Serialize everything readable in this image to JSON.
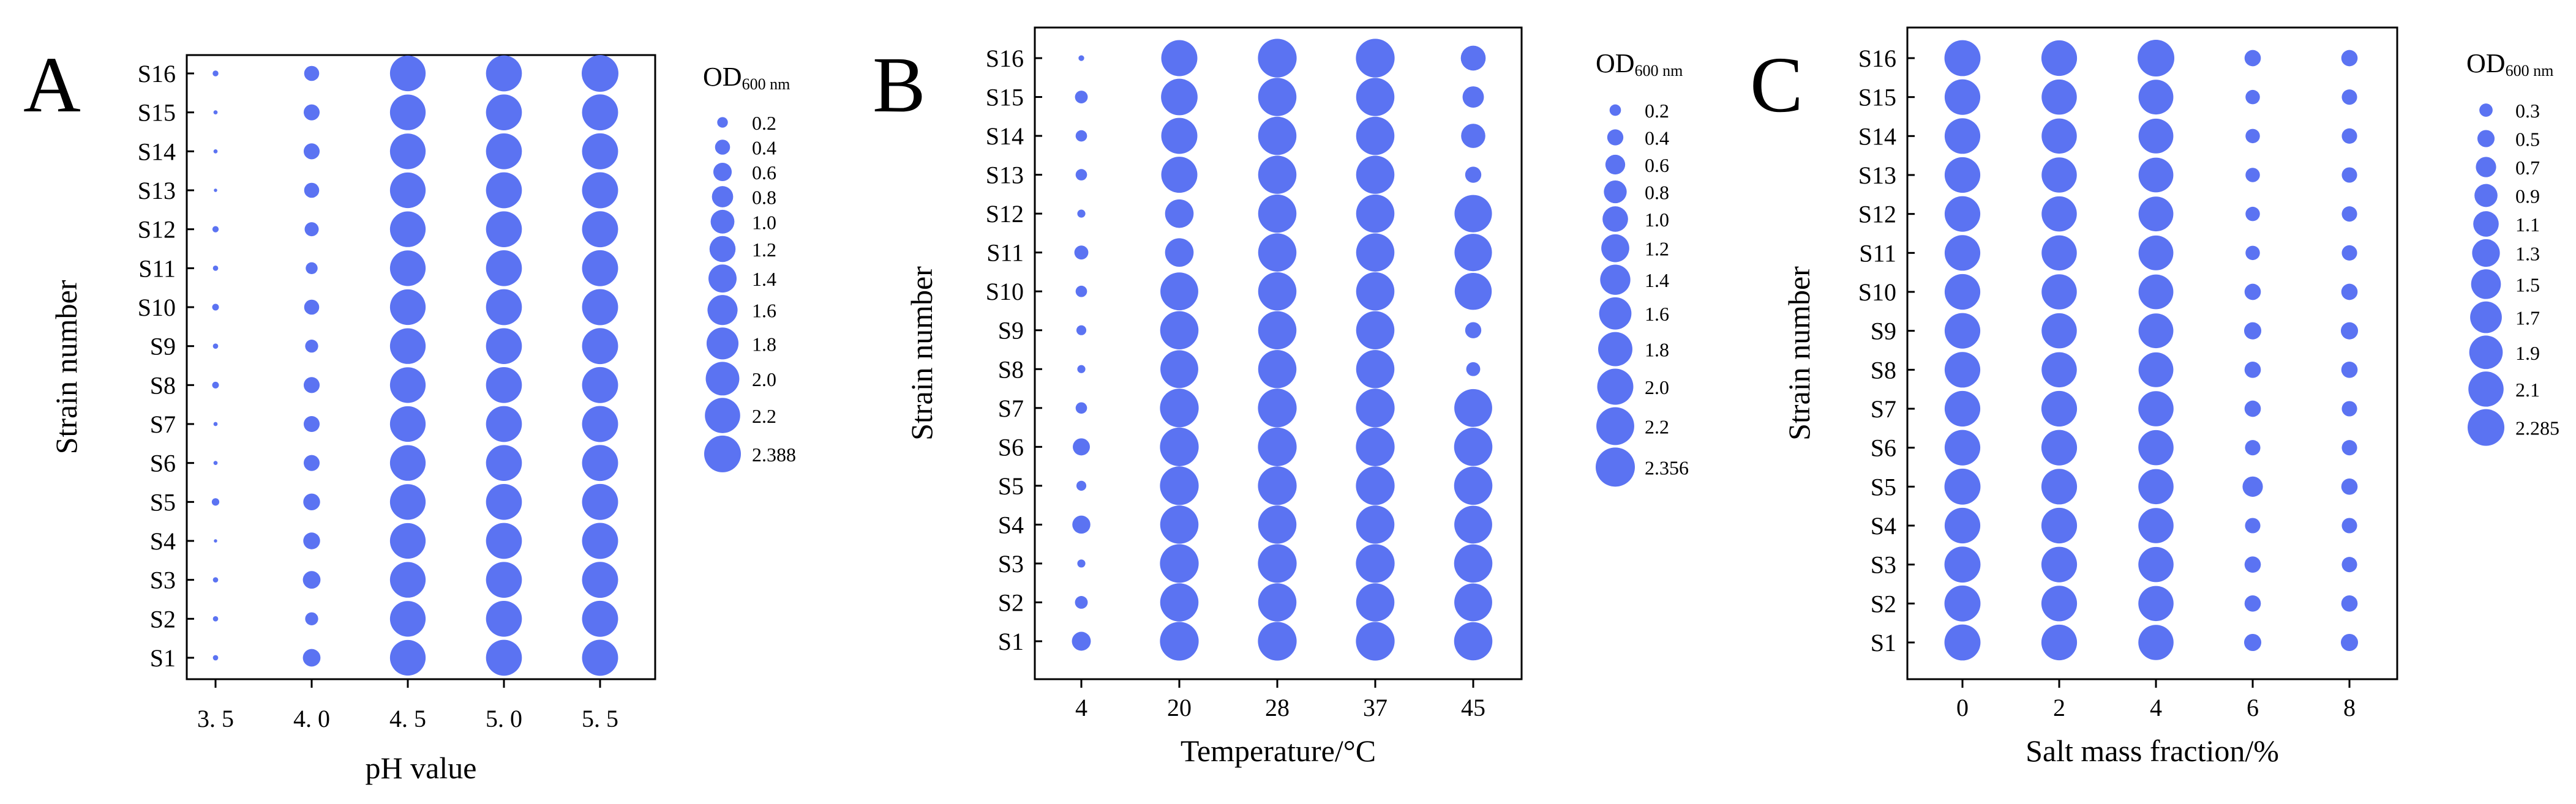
{
  "figure": {
    "bubble_color": "#5b73f2",
    "panels_letters": [
      "A",
      "B",
      "C"
    ]
  },
  "chart_data": [
    {
      "type": "scatter",
      "panel_label": "A",
      "xlabel": "pH value",
      "ylabel": "Strain number",
      "categories": [
        "3.5",
        "4.0",
        "4.5",
        "5.0",
        "5.5"
      ],
      "category_labels": [
        "3. 5",
        "4. 0",
        "4. 5",
        "5. 0",
        "5. 5"
      ],
      "strains": [
        "S1",
        "S2",
        "S3",
        "S4",
        "S5",
        "S6",
        "S7",
        "S8",
        "S9",
        "S10",
        "S11",
        "S12",
        "S13",
        "S14",
        "S15",
        "S16"
      ],
      "size_legend": {
        "title_main": "OD",
        "title_sub": "600 nm",
        "values": [
          0.2,
          0.4,
          0.6,
          0.8,
          1.0,
          1.2,
          1.4,
          1.6,
          1.8,
          2.0,
          2.2,
          2.388
        ],
        "labels": [
          "0.2",
          "0.4",
          "0.6",
          "0.8",
          "1.0",
          "1.2",
          "1.4",
          "1.6",
          "1.8",
          "2.0",
          "2.2",
          "2.388"
        ]
      },
      "max_value": 2.388,
      "values": [
        [
          0.05,
          0.55,
          2.25,
          2.28,
          2.3
        ],
        [
          0.05,
          0.3,
          2.25,
          2.28,
          2.3
        ],
        [
          0.05,
          0.55,
          2.25,
          2.28,
          2.3
        ],
        [
          0.02,
          0.5,
          2.25,
          2.28,
          2.3
        ],
        [
          0.1,
          0.5,
          2.25,
          2.28,
          2.3
        ],
        [
          0.03,
          0.45,
          2.25,
          2.28,
          2.3
        ],
        [
          0.03,
          0.45,
          2.25,
          2.28,
          2.3
        ],
        [
          0.08,
          0.45,
          2.25,
          2.28,
          2.3
        ],
        [
          0.05,
          0.3,
          2.25,
          2.28,
          2.3
        ],
        [
          0.08,
          0.4,
          2.25,
          2.28,
          2.3
        ],
        [
          0.05,
          0.25,
          2.25,
          2.28,
          2.3
        ],
        [
          0.07,
          0.35,
          2.25,
          2.28,
          2.3
        ],
        [
          0.02,
          0.4,
          2.25,
          2.28,
          2.3
        ],
        [
          0.03,
          0.45,
          2.25,
          2.28,
          2.3
        ],
        [
          0.03,
          0.45,
          2.25,
          2.28,
          2.3
        ],
        [
          0.06,
          0.4,
          2.25,
          2.28,
          2.388
        ]
      ]
    },
    {
      "type": "scatter",
      "panel_label": "B",
      "xlabel": "Temperature/°C",
      "ylabel": "Strain number",
      "categories": [
        "4",
        "20",
        "28",
        "37",
        "45"
      ],
      "category_labels": [
        "4",
        "20",
        "28",
        "37",
        "45"
      ],
      "strains": [
        "S1",
        "S2",
        "S3",
        "S4",
        "S5",
        "S6",
        "S7",
        "S8",
        "S9",
        "S10",
        "S11",
        "S12",
        "S13",
        "S14",
        "S15",
        "S16"
      ],
      "size_legend": {
        "title_main": "OD",
        "title_sub": "600 nm",
        "values": [
          0.2,
          0.4,
          0.6,
          0.8,
          1.0,
          1.2,
          1.4,
          1.6,
          1.8,
          2.0,
          2.2,
          2.356
        ],
        "labels": [
          "0.2",
          "0.4",
          "0.6",
          "0.8",
          "1.0",
          "1.2",
          "1.4",
          "1.6",
          "1.8",
          "2.0",
          "2.2",
          "2.356"
        ]
      },
      "max_value": 2.356,
      "values": [
        [
          0.55,
          2.3,
          2.3,
          2.3,
          2.25
        ],
        [
          0.25,
          2.25,
          2.25,
          2.25,
          2.2
        ],
        [
          0.1,
          2.3,
          2.3,
          2.3,
          2.25
        ],
        [
          0.5,
          2.25,
          2.25,
          2.25,
          2.2
        ],
        [
          0.15,
          2.3,
          2.3,
          2.3,
          2.25
        ],
        [
          0.45,
          2.3,
          2.3,
          2.3,
          2.25
        ],
        [
          0.2,
          2.3,
          2.3,
          2.3,
          2.2
        ],
        [
          0.1,
          2.2,
          2.25,
          2.25,
          0.3
        ],
        [
          0.15,
          2.25,
          2.25,
          2.25,
          0.4
        ],
        [
          0.2,
          2.2,
          2.25,
          2.25,
          2.1
        ],
        [
          0.3,
          1.25,
          2.25,
          2.25,
          2.15
        ],
        [
          0.1,
          1.25,
          2.25,
          2.25,
          2.15
        ],
        [
          0.2,
          2.0,
          2.25,
          2.25,
          0.4
        ],
        [
          0.2,
          2.0,
          2.25,
          2.25,
          0.9
        ],
        [
          0.25,
          2.05,
          2.25,
          2.25,
          0.7
        ],
        [
          0.05,
          2.0,
          2.3,
          2.3,
          0.95
        ]
      ]
    },
    {
      "type": "scatter",
      "panel_label": "C",
      "xlabel": "Salt mass fraction/%",
      "ylabel": "Strain number",
      "categories": [
        "0",
        "2",
        "4",
        "6",
        "8"
      ],
      "category_labels": [
        "0",
        "2",
        "4",
        "6",
        "8"
      ],
      "strains": [
        "S1",
        "S2",
        "S3",
        "S4",
        "S5",
        "S6",
        "S7",
        "S8",
        "S9",
        "S10",
        "S11",
        "S12",
        "S13",
        "S14",
        "S15",
        "S16"
      ],
      "size_legend": {
        "title_main": "OD",
        "title_sub": "600 nm",
        "values": [
          0.3,
          0.5,
          0.7,
          0.9,
          1.1,
          1.3,
          1.5,
          1.7,
          1.9,
          2.1,
          2.285
        ],
        "labels": [
          "0.3",
          "0.5",
          "0.7",
          "0.9",
          "1.1",
          "1.3",
          "1.5",
          "1.7",
          "1.9",
          "2.1",
          "2.285"
        ]
      },
      "max_value": 2.285,
      "values": [
        [
          2.2,
          2.15,
          2.1,
          0.5,
          0.5
        ],
        [
          2.2,
          2.15,
          2.1,
          0.45,
          0.45
        ],
        [
          2.2,
          2.15,
          2.1,
          0.45,
          0.4
        ],
        [
          2.15,
          2.15,
          2.1,
          0.4,
          0.4
        ],
        [
          2.2,
          2.15,
          2.1,
          0.7,
          0.45
        ],
        [
          2.15,
          2.15,
          2.1,
          0.4,
          0.4
        ],
        [
          2.15,
          2.15,
          2.1,
          0.45,
          0.4
        ],
        [
          2.15,
          2.1,
          2.05,
          0.45,
          0.45
        ],
        [
          2.15,
          2.1,
          2.05,
          0.5,
          0.5
        ],
        [
          2.15,
          2.1,
          2.05,
          0.45,
          0.45
        ],
        [
          2.15,
          2.1,
          2.05,
          0.35,
          0.4
        ],
        [
          2.15,
          2.1,
          2.05,
          0.35,
          0.4
        ],
        [
          2.15,
          2.1,
          2.05,
          0.35,
          0.4
        ],
        [
          2.15,
          2.1,
          2.05,
          0.35,
          0.4
        ],
        [
          2.15,
          2.1,
          2.05,
          0.35,
          0.4
        ],
        [
          2.2,
          2.15,
          2.285,
          0.45,
          0.45
        ]
      ]
    }
  ]
}
